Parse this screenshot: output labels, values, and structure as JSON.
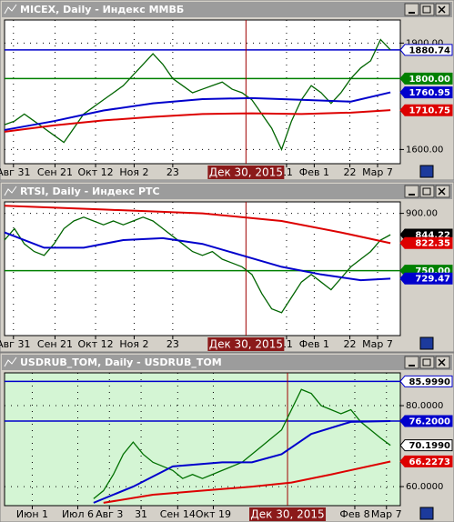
{
  "chart_data": [
    {
      "type": "line",
      "title": "MICEX, Daily - Индекс ММВБ",
      "background": "#ffffff",
      "xlim": [
        0,
        40
      ],
      "ylim": [
        1560,
        1965
      ],
      "yticks": [
        {
          "value": 1900,
          "label": "1900.00"
        },
        {
          "value": 1600,
          "label": "1600.00"
        }
      ],
      "xticks": [
        {
          "value": 0.9,
          "label": "Авг 31"
        },
        {
          "value": 5.1,
          "label": "Сен 21"
        },
        {
          "value": 9.2,
          "label": "Окт 12"
        },
        {
          "value": 13.1,
          "label": "Ноя 2"
        },
        {
          "value": 17,
          "label": "23"
        },
        {
          "value": 28.5,
          "label": "11"
        },
        {
          "value": 31.3,
          "label": "Фев 1"
        },
        {
          "value": 34.9,
          "label": "22"
        },
        {
          "value": 37.7,
          "label": "Мар 7"
        }
      ],
      "marker": {
        "value": 24.4,
        "label": "Дек 30, 2015"
      },
      "x": [
        0,
        1,
        2,
        3,
        4,
        5,
        6,
        7,
        8,
        9,
        10,
        11,
        12,
        13,
        14,
        15,
        16,
        17,
        18,
        19,
        20,
        21,
        22,
        23,
        24,
        25,
        26,
        27,
        28,
        29,
        30,
        31,
        32,
        33,
        34,
        35,
        36,
        37,
        38,
        39
      ],
      "series": [
        {
          "color": "#006400",
          "values": [
            1670,
            1680,
            1700,
            1680,
            1660,
            1640,
            1620,
            1660,
            1700,
            1720,
            1740,
            1760,
            1780,
            1810,
            1840,
            1870,
            1840,
            1800,
            1780,
            1760,
            1770,
            1780,
            1790,
            1770,
            1760,
            1740,
            1700,
            1660,
            1600,
            1680,
            1740,
            1780,
            1760,
            1730,
            1760,
            1800,
            1830,
            1850,
            1910,
            1881
          ]
        },
        {
          "color": "#0000cc",
          "x": [
            0,
            5,
            10,
            15,
            20,
            25,
            30,
            35,
            39
          ],
          "values": [
            1655,
            1680,
            1710,
            1730,
            1742,
            1745,
            1740,
            1735,
            1761
          ]
        },
        {
          "color": "#dd0000",
          "x": [
            0,
            5,
            10,
            15,
            20,
            25,
            30,
            35,
            39
          ],
          "values": [
            1650,
            1668,
            1682,
            1692,
            1700,
            1702,
            1700,
            1704,
            1711
          ]
        }
      ],
      "levels": [
        {
          "value": 1880.74,
          "label": "1880.74",
          "color": "#0000cc",
          "fill": "#ffffff",
          "line": true
        },
        {
          "value": 1800,
          "label": "1800.00",
          "color": "#008000",
          "fill": "#008000",
          "line": true
        },
        {
          "value": 1760.95,
          "label": "1760.95",
          "color": "#0000cc",
          "fill": "#0000cc",
          "line": false
        },
        {
          "value": 1710.75,
          "label": "1710.75",
          "color": "#dd0000",
          "fill": "#dd0000",
          "line": false
        }
      ]
    },
    {
      "type": "line",
      "title": "RTSI, Daily - Индекс РТС",
      "background": "#ffffff",
      "xlim": [
        0,
        40
      ],
      "ylim": [
        580,
        930
      ],
      "yticks": [
        {
          "value": 900,
          "label": "900.00"
        }
      ],
      "xticks": [
        {
          "value": 0.9,
          "label": "Авг 31"
        },
        {
          "value": 5.1,
          "label": "Сен 21"
        },
        {
          "value": 9.2,
          "label": "Окт 12"
        },
        {
          "value": 13.1,
          "label": "Ноя 2"
        },
        {
          "value": 17,
          "label": "23"
        },
        {
          "value": 28.5,
          "label": "11"
        },
        {
          "value": 31.3,
          "label": "Фев 1"
        },
        {
          "value": 34.9,
          "label": "22"
        },
        {
          "value": 37.7,
          "label": "Мар 7"
        }
      ],
      "marker": {
        "value": 24.4,
        "label": "Дек 30, 2015"
      },
      "x": [
        0,
        1,
        2,
        3,
        4,
        5,
        6,
        7,
        8,
        9,
        10,
        11,
        12,
        13,
        14,
        15,
        16,
        17,
        18,
        19,
        20,
        21,
        22,
        23,
        24,
        25,
        26,
        27,
        28,
        29,
        30,
        31,
        32,
        33,
        34,
        35,
        36,
        37,
        38,
        39
      ],
      "series": [
        {
          "color": "#006400",
          "values": [
            830,
            860,
            820,
            800,
            790,
            820,
            860,
            880,
            890,
            880,
            870,
            880,
            870,
            880,
            890,
            880,
            860,
            840,
            820,
            800,
            790,
            800,
            780,
            770,
            760,
            740,
            690,
            650,
            640,
            680,
            720,
            740,
            720,
            700,
            730,
            760,
            780,
            800,
            830,
            844
          ]
        },
        {
          "color": "#0000cc",
          "x": [
            0,
            4,
            8,
            12,
            16,
            20,
            24,
            28,
            32,
            36,
            39
          ],
          "values": [
            850,
            810,
            810,
            830,
            835,
            820,
            790,
            760,
            740,
            725,
            729
          ]
        },
        {
          "color": "#dd0000",
          "x": [
            0,
            10,
            20,
            28,
            34,
            39
          ],
          "values": [
            920,
            910,
            900,
            880,
            850,
            822
          ]
        }
      ],
      "levels": [
        {
          "value": 844.22,
          "label": "844.22",
          "color": "#000000",
          "fill": "#000000",
          "line": false
        },
        {
          "value": 822.35,
          "label": "822.35",
          "color": "#dd0000",
          "fill": "#dd0000",
          "line": false
        },
        {
          "value": 750,
          "label": "750.00",
          "color": "#008000",
          "fill": "#008000",
          "line": true
        },
        {
          "value": 729.47,
          "label": "729.47",
          "color": "#0000cc",
          "fill": "#0000cc",
          "line": false
        }
      ]
    },
    {
      "type": "line",
      "title": "USDRUB_TOM, Daily - USDRUB_TOM",
      "background": "#d4f5d4",
      "xlim": [
        0,
        40
      ],
      "ylim": [
        55.3,
        88.1
      ],
      "yticks": [
        {
          "value": 80,
          "label": "80.0000"
        },
        {
          "value": 60,
          "label": "60.0000"
        }
      ],
      "xticks": [
        {
          "value": 2.8,
          "label": "Июн 1"
        },
        {
          "value": 7.4,
          "label": "Июл 6"
        },
        {
          "value": 10.6,
          "label": "Авг 3"
        },
        {
          "value": 13.8,
          "label": "31"
        },
        {
          "value": 17.5,
          "label": "Сен 14"
        },
        {
          "value": 21.1,
          "label": "Окт 19"
        },
        {
          "value": 35.4,
          "label": "Фев 8"
        },
        {
          "value": 38.6,
          "label": "Мар 7"
        }
      ],
      "marker": {
        "value": 28.6,
        "label": "Дек 30, 2015"
      },
      "x": [
        0,
        1,
        2,
        3,
        4,
        5,
        6,
        7,
        8,
        9,
        10,
        11,
        12,
        13,
        14,
        15,
        16,
        17,
        18,
        19,
        20,
        21,
        22,
        23,
        24,
        25,
        26,
        27,
        28,
        29,
        30,
        31,
        32,
        33,
        34,
        35,
        36,
        37,
        38,
        39
      ],
      "series": [
        {
          "color": "#007000",
          "values": [
            null,
            null,
            null,
            null,
            null,
            null,
            null,
            null,
            null,
            57,
            59,
            63,
            68,
            71,
            68,
            66,
            65,
            64,
            62,
            63,
            62,
            63,
            64,
            65,
            66,
            68,
            70,
            72,
            74,
            79,
            84,
            83,
            80,
            79,
            78,
            79,
            76,
            74,
            72,
            70.2
          ]
        },
        {
          "color": "#0000cc",
          "x": [
            9,
            13,
            17,
            22,
            25,
            28,
            31,
            35,
            39
          ],
          "values": [
            56,
            60,
            65,
            66,
            66,
            68,
            73,
            76,
            76.2
          ]
        },
        {
          "color": "#dd0000",
          "x": [
            10,
            15,
            20,
            25,
            29,
            33,
            39
          ],
          "values": [
            56,
            58,
            59,
            60,
            61,
            63,
            66.2
          ]
        }
      ],
      "levels": [
        {
          "value": 85.999,
          "label": "85.9990",
          "color": "#0000cc",
          "fill": "#ffffff",
          "line": true
        },
        {
          "value": 76.2,
          "label": "76.2000",
          "color": "#0000cc",
          "fill": "#0000cc",
          "line": true
        },
        {
          "value": 70.199,
          "label": "70.1990",
          "color": "#000000",
          "fill": "#ffffff",
          "line": false
        },
        {
          "value": 66.2273,
          "label": "66.2273",
          "color": "#dd0000",
          "fill": "#dd0000",
          "line": false
        }
      ]
    }
  ]
}
